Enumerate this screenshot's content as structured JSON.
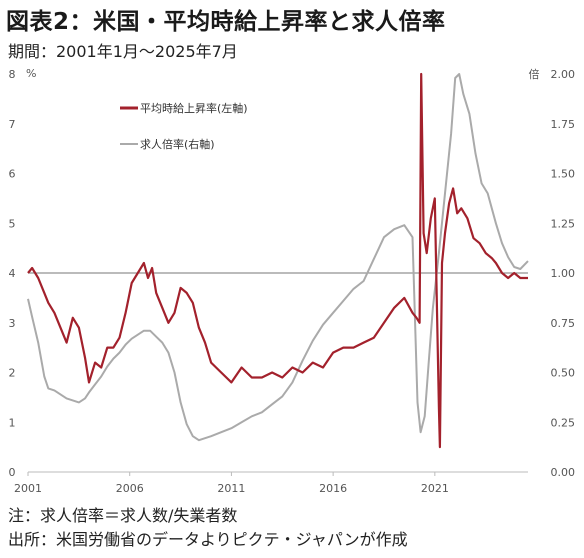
{
  "title": "図表2：米国・平均時給上昇率と求人倍率",
  "subtitle": "期間：2001年1月～2025年7月",
  "note": "注：求人倍率＝求人数/失業者数",
  "source": "出所：米国労働省のデータよりピクテ・ジャパンが作成",
  "chart_data": {
    "type": "line",
    "y_left_unit": "%",
    "y_right_unit": "倍",
    "y_left_range": [
      0,
      8
    ],
    "y_right_range": [
      0,
      2
    ],
    "y_left_ticks": [
      "0",
      "1",
      "2",
      "3",
      "4",
      "5",
      "6",
      "7",
      "8"
    ],
    "y_right_ticks": [
      "0.00",
      "0.25",
      "0.50",
      "0.75",
      "1.00",
      "1.25",
      "1.50",
      "1.75",
      "2.00"
    ],
    "x_range": [
      2001.0,
      2025.58
    ],
    "x_ticks": [
      "2001",
      "2006",
      "2011",
      "2016",
      "2021"
    ],
    "reference_line": {
      "axis": "right",
      "value": 1.0
    },
    "colors": {
      "wage": "#a3212c",
      "ratio": "#aaaaaa",
      "reference": "#777777"
    },
    "legend_position": "top-left",
    "series": [
      {
        "name": "平均時給上昇率(左軸)",
        "axis": "left",
        "x": [
          2001.0,
          2001.2,
          2001.5,
          2001.8,
          2002.0,
          2002.3,
          2002.6,
          2002.9,
          2003.2,
          2003.5,
          2003.8,
          2004.0,
          2004.3,
          2004.6,
          2004.9,
          2005.2,
          2005.5,
          2005.8,
          2006.1,
          2006.4,
          2006.7,
          2006.9,
          2007.1,
          2007.3,
          2007.6,
          2007.9,
          2008.2,
          2008.5,
          2008.8,
          2009.1,
          2009.4,
          2009.7,
          2010.0,
          2010.5,
          2011.0,
          2011.5,
          2012.0,
          2012.5,
          2013.0,
          2013.5,
          2014.0,
          2014.5,
          2015.0,
          2015.5,
          2016.0,
          2016.5,
          2017.0,
          2017.5,
          2018.0,
          2018.5,
          2019.0,
          2019.5,
          2019.9,
          2020.1,
          2020.25,
          2020.33,
          2020.45,
          2020.6,
          2020.8,
          2021.0,
          2021.2,
          2021.25,
          2021.35,
          2021.5,
          2021.7,
          2021.9,
          2022.1,
          2022.3,
          2022.6,
          2022.9,
          2023.2,
          2023.5,
          2023.8,
          2024.0,
          2024.3,
          2024.6,
          2024.9,
          2025.2,
          2025.58
        ],
        "y": [
          4.0,
          4.1,
          3.9,
          3.6,
          3.4,
          3.2,
          2.9,
          2.6,
          3.1,
          2.9,
          2.3,
          1.8,
          2.2,
          2.1,
          2.5,
          2.5,
          2.7,
          3.2,
          3.8,
          4.0,
          4.2,
          3.9,
          4.1,
          3.6,
          3.3,
          3.0,
          3.2,
          3.7,
          3.6,
          3.4,
          2.9,
          2.6,
          2.2,
          2.0,
          1.8,
          2.1,
          1.9,
          1.9,
          2.0,
          1.9,
          2.1,
          2.0,
          2.2,
          2.1,
          2.4,
          2.5,
          2.5,
          2.6,
          2.7,
          3.0,
          3.3,
          3.5,
          3.2,
          3.1,
          3.0,
          8.0,
          4.8,
          4.4,
          5.1,
          5.5,
          1.3,
          0.5,
          4.2,
          4.8,
          5.4,
          5.7,
          5.2,
          5.3,
          5.1,
          4.7,
          4.6,
          4.4,
          4.3,
          4.2,
          4.0,
          3.9,
          4.0,
          3.9,
          3.9
        ]
      },
      {
        "name": "求人倍率(右軸)",
        "axis": "right",
        "x": [
          2001.0,
          2001.2,
          2001.5,
          2001.8,
          2002.0,
          2002.3,
          2002.6,
          2002.9,
          2003.2,
          2003.5,
          2003.8,
          2004.0,
          2004.3,
          2004.6,
          2004.9,
          2005.2,
          2005.5,
          2005.8,
          2006.1,
          2006.4,
          2006.7,
          2007.0,
          2007.3,
          2007.6,
          2007.9,
          2008.2,
          2008.5,
          2008.8,
          2009.1,
          2009.4,
          2009.7,
          2010.0,
          2010.5,
          2011.0,
          2011.5,
          2012.0,
          2012.5,
          2013.0,
          2013.5,
          2014.0,
          2014.5,
          2015.0,
          2015.5,
          2016.0,
          2016.5,
          2017.0,
          2017.5,
          2018.0,
          2018.5,
          2019.0,
          2019.5,
          2019.9,
          2020.15,
          2020.3,
          2020.5,
          2020.7,
          2020.9,
          2021.2,
          2021.5,
          2021.8,
          2022.0,
          2022.2,
          2022.4,
          2022.7,
          2023.0,
          2023.3,
          2023.6,
          2024.0,
          2024.3,
          2024.6,
          2024.9,
          2025.2,
          2025.58
        ],
        "y": [
          0.87,
          0.78,
          0.65,
          0.48,
          0.42,
          0.41,
          0.39,
          0.37,
          0.36,
          0.35,
          0.37,
          0.4,
          0.44,
          0.48,
          0.53,
          0.57,
          0.6,
          0.64,
          0.67,
          0.69,
          0.71,
          0.71,
          0.68,
          0.65,
          0.6,
          0.5,
          0.35,
          0.24,
          0.18,
          0.16,
          0.17,
          0.18,
          0.2,
          0.22,
          0.25,
          0.28,
          0.3,
          0.34,
          0.38,
          0.45,
          0.56,
          0.66,
          0.74,
          0.8,
          0.86,
          0.92,
          0.96,
          1.07,
          1.18,
          1.22,
          1.24,
          1.18,
          0.35,
          0.2,
          0.28,
          0.55,
          0.82,
          1.1,
          1.4,
          1.7,
          1.98,
          2.0,
          1.9,
          1.8,
          1.6,
          1.45,
          1.4,
          1.25,
          1.15,
          1.08,
          1.03,
          1.02,
          1.06
        ]
      }
    ]
  }
}
